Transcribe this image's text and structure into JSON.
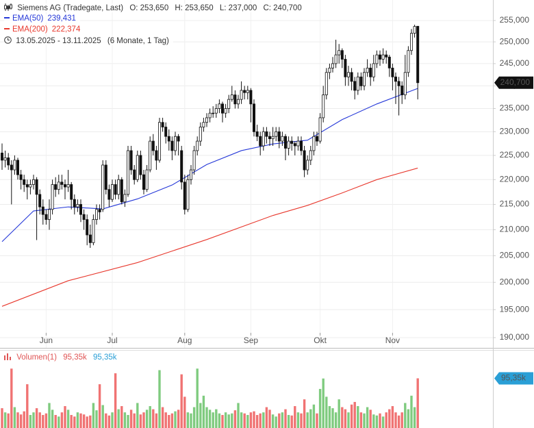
{
  "chart_data": [
    {
      "type": "candlestick",
      "header": {
        "title": "Siemens AG (Tradegate, Last)",
        "open_label": "O: 253,650",
        "high_label": "H: 253,650",
        "low_label": "L: 237,000",
        "close_label": "C: 240,700",
        "range": "13.05.2025 - 13.11.2025",
        "period": "(6 Monate, 1 Tag)"
      },
      "categories": [
        null,
        null,
        null,
        null,
        null,
        null,
        null,
        null,
        null,
        null,
        null,
        null,
        null,
        null,
        "Jun",
        null,
        null,
        null,
        null,
        null,
        null,
        null,
        null,
        null,
        null,
        null,
        null,
        null,
        null,
        null,
        null,
        null,
        null,
        null,
        null,
        "Jul",
        null,
        null,
        null,
        null,
        null,
        null,
        null,
        null,
        null,
        null,
        null,
        null,
        null,
        null,
        null,
        null,
        null,
        null,
        null,
        null,
        null,
        null,
        "Aug",
        null,
        null,
        null,
        null,
        null,
        null,
        null,
        null,
        null,
        null,
        null,
        null,
        null,
        null,
        null,
        null,
        null,
        null,
        null,
        null,
        "Sep",
        null,
        null,
        null,
        null,
        null,
        null,
        null,
        null,
        null,
        null,
        null,
        null,
        null,
        null,
        null,
        null,
        null,
        null,
        null,
        null,
        null,
        "Okt",
        null,
        null,
        null,
        null,
        null,
        null,
        null,
        null,
        null,
        null,
        null,
        null,
        null,
        null,
        null,
        null,
        null,
        null,
        null,
        null,
        null,
        null,
        "Nov",
        null,
        null,
        null,
        null,
        null,
        null,
        null,
        null
      ],
      "candles": [
        [
          225.5,
          227.5,
          222,
          224
        ],
        [
          224,
          226,
          222.5,
          224.5
        ],
        [
          224.5,
          225.5,
          222,
          223
        ],
        [
          223,
          224,
          215,
          222
        ],
        [
          222,
          225,
          221,
          224
        ],
        [
          224,
          224.5,
          220,
          221
        ],
        [
          221,
          222,
          218,
          220
        ],
        [
          220,
          221,
          217.5,
          219
        ],
        [
          219,
          220,
          216,
          218.5
        ],
        [
          218.5,
          220,
          217,
          219
        ],
        [
          219,
          221,
          218,
          220
        ],
        [
          220,
          220.5,
          208,
          217
        ],
        [
          217,
          218,
          213,
          214.5
        ],
        [
          214.5,
          216,
          211,
          213
        ],
        [
          213,
          214,
          211,
          212
        ],
        [
          212,
          216,
          210,
          214
        ],
        [
          214,
          220,
          213,
          219
        ],
        [
          219,
          220.5,
          216.5,
          218
        ],
        [
          218,
          221,
          217,
          219.5
        ],
        [
          219.5,
          221,
          218,
          219
        ],
        [
          219,
          220,
          216,
          218.5
        ],
        [
          218.5,
          222,
          217.5,
          219
        ],
        [
          219,
          219.5,
          214,
          216
        ],
        [
          216,
          217,
          213,
          214.5
        ],
        [
          214.5,
          216,
          213.5,
          215
        ],
        [
          215,
          216,
          211.5,
          213
        ],
        [
          213,
          214,
          210,
          212
        ],
        [
          212,
          213,
          207,
          209
        ],
        [
          209,
          211,
          206.5,
          207.5
        ],
        [
          207.5,
          213,
          207,
          212
        ],
        [
          212,
          215,
          211,
          214
        ],
        [
          214,
          215,
          212,
          213.5
        ],
        [
          214,
          224,
          213.5,
          223
        ],
        [
          223,
          224,
          217,
          218
        ],
        [
          218,
          219,
          214.5,
          216
        ],
        [
          216,
          220,
          215.5,
          219
        ],
        [
          219,
          220,
          216,
          217
        ],
        [
          217,
          221,
          216,
          220
        ],
        [
          220,
          220.5,
          215,
          215.5
        ],
        [
          215.5,
          218,
          214.5,
          217
        ],
        [
          217,
          227,
          216.5,
          226
        ],
        [
          226,
          227,
          221,
          222
        ],
        [
          222,
          223,
          219,
          220
        ],
        [
          220,
          226,
          219.5,
          225
        ],
        [
          225,
          226,
          220,
          221
        ],
        [
          221,
          222,
          217,
          218
        ],
        [
          218,
          223,
          217.5,
          222
        ],
        [
          222,
          229,
          221.5,
          228
        ],
        [
          228,
          229.5,
          225,
          226
        ],
        [
          226,
          227,
          222,
          224
        ],
        [
          224,
          233,
          223.5,
          232
        ],
        [
          232,
          233,
          230,
          231
        ],
        [
          231,
          232,
          227.5,
          229
        ],
        [
          229,
          230.5,
          226,
          228
        ],
        [
          228,
          229,
          224,
          226
        ],
        [
          226,
          230,
          225,
          229
        ],
        [
          229,
          229.5,
          225,
          228
        ],
        [
          226,
          227,
          218,
          219.5
        ],
        [
          219.5,
          221,
          213,
          214
        ],
        [
          214,
          221,
          213.5,
          220
        ],
        [
          220,
          223,
          219,
          222
        ],
        [
          222,
          227,
          221,
          226
        ],
        [
          226,
          229,
          225,
          228
        ],
        [
          228,
          232,
          227,
          231
        ],
        [
          231,
          233,
          230,
          232
        ],
        [
          232,
          234,
          231,
          233
        ],
        [
          233,
          235,
          232,
          234
        ],
        [
          234,
          235.5,
          233,
          234
        ],
        [
          234,
          236,
          233,
          235
        ],
        [
          235,
          237,
          234,
          236
        ],
        [
          236,
          236.5,
          232,
          234
        ],
        [
          234,
          236,
          233,
          235
        ],
        [
          235,
          238,
          234,
          237
        ],
        [
          237,
          240,
          236.5,
          238
        ],
        [
          238,
          239,
          235,
          236
        ],
        [
          236,
          238,
          235,
          237
        ],
        [
          237,
          241,
          236,
          239
        ],
        [
          239,
          240,
          237,
          238.5
        ],
        [
          238.5,
          240,
          237,
          239
        ],
        [
          239,
          239.5,
          232,
          236
        ],
        [
          236,
          237,
          229,
          230
        ],
        [
          230,
          231.5,
          228,
          229
        ],
        [
          229,
          230,
          225,
          227
        ],
        [
          227,
          231,
          226,
          230
        ],
        [
          230,
          231,
          227.5,
          229
        ],
        [
          229,
          230,
          227,
          228.5
        ],
        [
          228.5,
          231,
          227,
          229
        ],
        [
          229,
          231,
          228,
          230
        ],
        [
          230,
          231,
          226.5,
          228
        ],
        [
          228,
          230,
          227,
          229
        ],
        [
          229,
          229.5,
          224,
          226.5
        ],
        [
          226.5,
          229,
          225,
          228
        ],
        [
          228,
          229,
          226,
          227.5
        ],
        [
          227.5,
          228,
          225,
          227
        ],
        [
          227,
          229,
          226,
          228
        ],
        [
          228,
          229,
          225,
          226
        ],
        [
          226,
          227,
          220.5,
          222
        ],
        [
          222,
          225,
          221,
          224
        ],
        [
          224,
          227,
          223,
          226
        ],
        [
          226,
          230,
          225,
          229
        ],
        [
          229,
          230,
          227,
          228
        ],
        [
          228,
          234,
          227.5,
          233
        ],
        [
          233,
          240,
          232,
          238
        ],
        [
          238,
          244,
          237,
          243
        ],
        [
          243,
          245,
          241.5,
          244
        ],
        [
          244,
          246.5,
          243,
          245
        ],
        [
          245,
          250.5,
          244,
          247
        ],
        [
          247,
          249.5,
          245,
          248
        ],
        [
          248,
          248.5,
          244,
          246
        ],
        [
          246,
          247,
          240,
          242
        ],
        [
          242,
          244.5,
          240,
          243
        ],
        [
          243,
          244,
          239,
          241
        ],
        [
          241,
          242,
          237,
          239
        ],
        [
          239,
          243,
          238,
          242
        ],
        [
          242,
          243,
          239,
          240
        ],
        [
          240,
          244,
          239,
          243
        ],
        [
          243,
          246,
          242,
          244
        ],
        [
          244,
          245,
          240,
          242
        ],
        [
          242,
          247,
          241,
          245
        ],
        [
          245,
          248,
          244,
          247
        ],
        [
          247,
          248,
          244.5,
          246
        ],
        [
          246,
          248.5,
          245,
          247
        ],
        [
          247,
          248,
          245,
          246.5
        ],
        [
          246.5,
          247,
          242,
          244
        ],
        [
          244,
          245,
          239,
          242
        ],
        [
          242,
          243,
          236,
          241
        ],
        [
          241,
          242,
          233.5,
          240
        ],
        [
          240,
          241,
          236,
          238
        ],
        [
          238,
          247,
          237,
          243
        ],
        [
          243,
          249,
          242,
          248
        ],
        [
          248,
          253,
          247,
          252
        ],
        [
          252,
          254,
          251,
          253.6
        ],
        [
          253.65,
          253.65,
          237,
          240.7
        ]
      ],
      "overlays": [
        {
          "name": "EMA(50)",
          "color": "#2437d8",
          "value_label": "239,431",
          "x": [
            0,
            10,
            21,
            32,
            43,
            54,
            65,
            76,
            86,
            97,
            108,
            119,
            132
          ],
          "values": [
            207.7,
            213.7,
            214.5,
            214.1,
            216.1,
            218.9,
            223.1,
            226.0,
            227.4,
            228.2,
            232.6,
            236.0,
            239.431
          ]
        },
        {
          "name": "EMA(200)",
          "color": "#e8372c",
          "value_label": "222,374",
          "x": [
            0,
            21,
            43,
            65,
            86,
            97,
            108,
            119,
            132
          ],
          "values": [
            195.6,
            200.3,
            203.7,
            208.1,
            212.8,
            214.8,
            217.3,
            220.0,
            222.374
          ]
        }
      ],
      "last_label": "240,700",
      "log_scale": true,
      "grid": true,
      "ylim": [
        188.2,
        259.9
      ],
      "yticks": [
        {
          "value": 190,
          "label": "190,000"
        },
        {
          "value": 195,
          "label": "195,000"
        },
        {
          "value": 200,
          "label": "200,000"
        },
        {
          "value": 205,
          "label": "205,000"
        },
        {
          "value": 210,
          "label": "210,000"
        },
        {
          "value": 215,
          "label": "215,000"
        },
        {
          "value": 220,
          "label": "220,000"
        },
        {
          "value": 225,
          "label": "225,000"
        },
        {
          "value": 230,
          "label": "230,000"
        },
        {
          "value": 235,
          "label": "235,000"
        },
        {
          "value": 240,
          "label": "240,000"
        },
        {
          "value": 245,
          "label": "245,000"
        },
        {
          "value": 250,
          "label": "250,000"
        },
        {
          "value": 255,
          "label": "255,000"
        }
      ]
    },
    {
      "type": "bar",
      "series": [
        {
          "name": "Volumen(1)",
          "up_color": "#7fcb7f",
          "down_color": "#f07373",
          "values": [
            38,
            30,
            28,
            114,
            40,
            30,
            26,
            32,
            84,
            25,
            30,
            38,
            30,
            25,
            28,
            48,
            35,
            25,
            22,
            30,
            42,
            35,
            25,
            22,
            30,
            28,
            26,
            22,
            24,
            48,
            34,
            84,
            44,
            28,
            24,
            30,
            105,
            36,
            42,
            30,
            25,
            35,
            28,
            48,
            26,
            30,
            35,
            42,
            36,
            28,
            111,
            40,
            30,
            25,
            28,
            32,
            35,
            103,
            60,
            30,
            28,
            40,
            114,
            48,
            62,
            40,
            35,
            30,
            36,
            28,
            25,
            30,
            26,
            28,
            34,
            48,
            30,
            28,
            25,
            30,
            32,
            25,
            28,
            30,
            40,
            35,
            26,
            22,
            28,
            30,
            36,
            25,
            24,
            42,
            30,
            28,
            55,
            30,
            36,
            45,
            28,
            75,
            95,
            60,
            42,
            38,
            30,
            55,
            40,
            36,
            30,
            45,
            50,
            42,
            30,
            28,
            40,
            35,
            26,
            24,
            28,
            22,
            30,
            36,
            42,
            30,
            24,
            30,
            48,
            36,
            62,
            40,
            95.35
          ],
          "last_value_label": "95,35k"
        }
      ],
      "ylim": [
        0,
        148.5
      ]
    }
  ]
}
